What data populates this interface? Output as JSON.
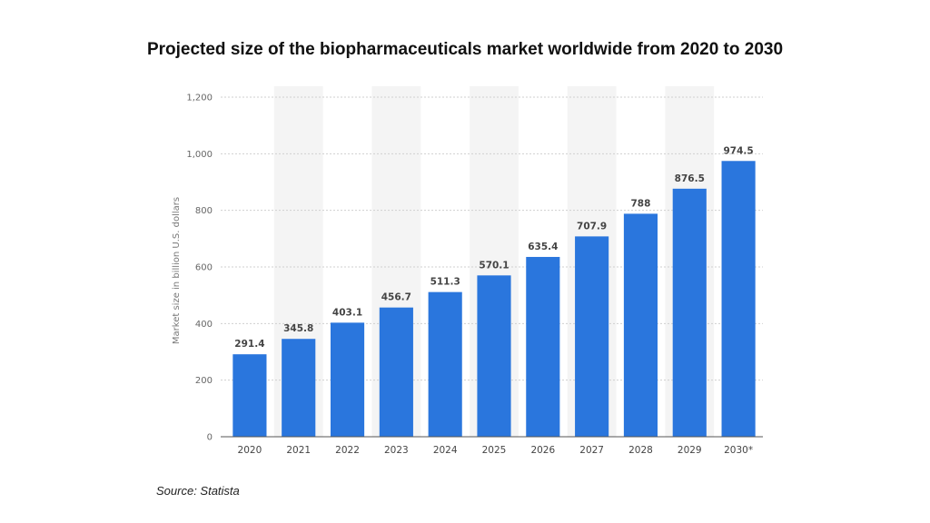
{
  "title": "Projected size of the biopharmaceuticals market worldwide from 2020 to 2030",
  "source": "Source: Statista",
  "chart_data": {
    "type": "bar",
    "title": "Projected size of the biopharmaceuticals market worldwide from 2020 to 2030",
    "xlabel": "",
    "ylabel": "Market size in billion U.S. dollars",
    "categories": [
      "2020",
      "2021",
      "2022",
      "2023",
      "2024",
      "2025",
      "2026",
      "2027",
      "2028",
      "2029",
      "2030*"
    ],
    "values": [
      291.4,
      345.8,
      403.1,
      456.7,
      511.3,
      570.1,
      635.4,
      707.9,
      788,
      876.5,
      974.5
    ],
    "value_labels": [
      "291.4",
      "345.8",
      "403.1",
      "456.7",
      "511.3",
      "570.1",
      "635.4",
      "707.9",
      "788",
      "876.5",
      "974.5"
    ],
    "ylim": [
      0,
      1200
    ],
    "yticks": [
      0,
      200,
      400,
      600,
      800,
      1000,
      1200
    ],
    "ytick_labels": [
      "0",
      "200",
      "400",
      "600",
      "800",
      "1,000",
      "1,200"
    ],
    "grid": true,
    "legend": "none",
    "bar_color": "#2a76dd",
    "band_color": "#f4f4f4"
  }
}
